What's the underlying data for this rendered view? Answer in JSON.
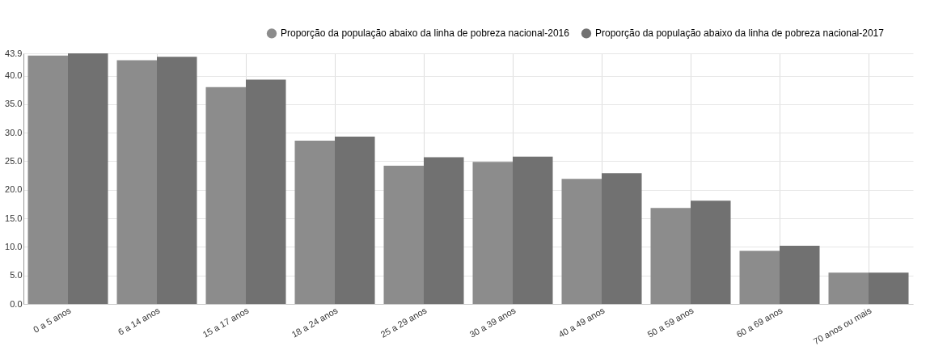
{
  "chart_data": {
    "type": "bar",
    "categories": [
      "0 a 5 anos",
      "6 a 14 anos",
      "15 a 17 anos",
      "18 a 24 anos",
      "25 a 29 anos",
      "30 a 39 anos",
      "40 a 49 anos",
      "50 a 59 anos",
      "60 a 69 anos",
      "70 anos ou mais"
    ],
    "series": [
      {
        "name": "Proporção da população abaixo da linha de pobreza nacional-2016",
        "color": "#8c8c8c",
        "values": [
          43.5,
          42.7,
          38.0,
          28.6,
          24.2,
          24.9,
          21.9,
          16.8,
          9.3,
          5.5
        ]
      },
      {
        "name": "Proporção da população abaixo da linha de pobreza nacional-2017",
        "color": "#717171",
        "values": [
          43.9,
          43.3,
          39.3,
          29.3,
          25.7,
          25.8,
          22.9,
          18.1,
          10.2,
          5.5
        ]
      }
    ],
    "ylim": [
      0,
      43.9
    ],
    "yticks": [
      {
        "value": 0,
        "label": "0.0"
      },
      {
        "value": 5,
        "label": "5.0"
      },
      {
        "value": 10,
        "label": "10.0"
      },
      {
        "value": 15,
        "label": "15.0"
      },
      {
        "value": 20,
        "label": "20.0"
      },
      {
        "value": 25,
        "label": "25.0"
      },
      {
        "value": 30,
        "label": "30.0"
      },
      {
        "value": 35,
        "label": "35.0"
      },
      {
        "value": 40,
        "label": "40.0"
      },
      {
        "value": 43.9,
        "label": "43.9"
      }
    ],
    "grid": true,
    "legend": "top right"
  }
}
